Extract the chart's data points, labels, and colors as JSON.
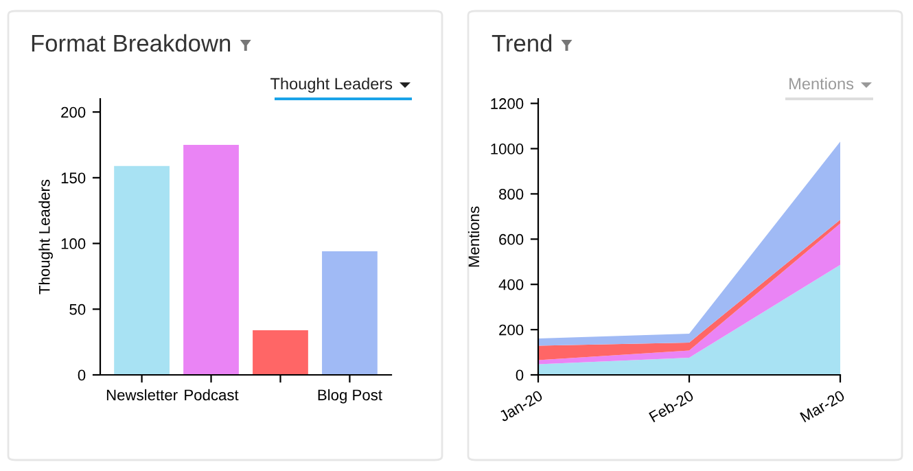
{
  "chart_data": [
    {
      "type": "bar",
      "title": "Format Breakdown",
      "ylabel": "Thought Leaders",
      "annotations": [
        "Thought Leaders"
      ],
      "categories": [
        "Newsletter",
        "Podcast",
        null,
        "Blog Post"
      ],
      "values": [
        159,
        175,
        34,
        94
      ],
      "colors": [
        "#a8e2f3",
        "#ea84f5",
        "#ff6666",
        "#a0baf5"
      ],
      "ylim": [
        0,
        210
      ],
      "yticks": [
        0,
        50,
        100,
        150,
        200
      ],
      "grid": false
    },
    {
      "type": "area",
      "stacked": true,
      "title": "Trend",
      "ylabel": "Mentions",
      "annotations": [
        "Mentions"
      ],
      "categories": [
        "Jan-20",
        "Feb-20",
        "Mar-20"
      ],
      "series": [
        {
          "color": "#a8e2f3",
          "values": [
            47,
            76,
            486
          ]
        },
        {
          "color": "#ea84f5",
          "values": [
            18,
            32,
            183
          ]
        },
        {
          "color": "#ff6666",
          "values": [
            64,
            35,
            17
          ]
        },
        {
          "color": "#a0baf5",
          "values": [
            32,
            39,
            345
          ]
        }
      ],
      "ylim": [
        0,
        1220
      ],
      "yticks": [
        0,
        200,
        400,
        600,
        800,
        1000,
        1200
      ],
      "grid": false
    }
  ]
}
